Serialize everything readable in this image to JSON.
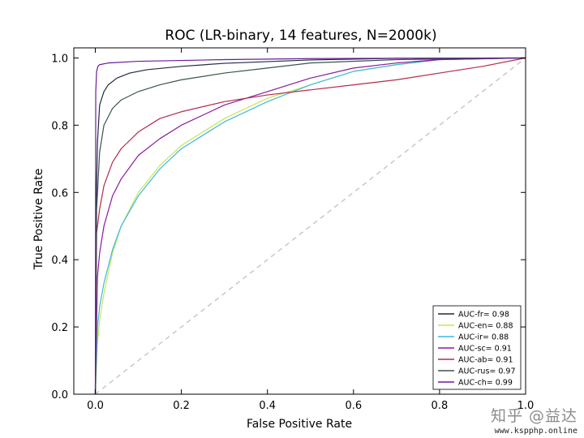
{
  "chart_data": {
    "type": "line",
    "title": "ROC (LR-binary, 14 features, N=2000k)",
    "xlabel": "False Positive Rate",
    "ylabel": "True Positive Rate",
    "xlim": [
      -0.05,
      1.0
    ],
    "ylim": [
      0.0,
      1.03
    ],
    "xticks": [
      "0.0",
      "0.2",
      "0.4",
      "0.6",
      "0.8",
      "1.0"
    ],
    "yticks": [
      "0.0",
      "0.2",
      "0.4",
      "0.6",
      "0.8",
      "1.0"
    ],
    "grid": false,
    "legend_position": "lower-right",
    "diagonal": {
      "color": "#c8c8c8",
      "dashed": true
    },
    "series": [
      {
        "name": "AUC-fr= 0.98",
        "color": "#1f2a44",
        "x": [
          0,
          0.002,
          0.005,
          0.01,
          0.02,
          0.03,
          0.05,
          0.08,
          0.12,
          0.2,
          0.3,
          0.5,
          0.7,
          1.0
        ],
        "y": [
          0,
          0.55,
          0.75,
          0.86,
          0.9,
          0.92,
          0.94,
          0.955,
          0.965,
          0.975,
          0.984,
          0.994,
          0.999,
          1.0
        ]
      },
      {
        "name": "AUC-en= 0.88",
        "color": "#c7e55a",
        "x": [
          0,
          0.005,
          0.01,
          0.02,
          0.04,
          0.06,
          0.1,
          0.15,
          0.2,
          0.3,
          0.4,
          0.5,
          0.6,
          0.7,
          0.8,
          1.0
        ],
        "y": [
          0,
          0.15,
          0.22,
          0.3,
          0.42,
          0.5,
          0.6,
          0.68,
          0.74,
          0.82,
          0.88,
          0.92,
          0.96,
          0.98,
          0.995,
          1.0
        ]
      },
      {
        "name": "AUC-ir= 0.88",
        "color": "#3cb9dd",
        "x": [
          0,
          0.005,
          0.01,
          0.02,
          0.04,
          0.06,
          0.1,
          0.15,
          0.2,
          0.3,
          0.4,
          0.5,
          0.6,
          0.7,
          0.8,
          1.0
        ],
        "y": [
          0,
          0.2,
          0.26,
          0.33,
          0.43,
          0.5,
          0.59,
          0.67,
          0.73,
          0.81,
          0.87,
          0.92,
          0.96,
          0.98,
          0.995,
          1.0
        ]
      },
      {
        "name": "AUC-sc= 0.91",
        "color": "#8b1a9e",
        "x": [
          0,
          0.005,
          0.01,
          0.02,
          0.04,
          0.06,
          0.1,
          0.15,
          0.2,
          0.3,
          0.4,
          0.5,
          0.6,
          0.7,
          0.8,
          1.0
        ],
        "y": [
          0,
          0.35,
          0.42,
          0.5,
          0.59,
          0.64,
          0.71,
          0.76,
          0.8,
          0.86,
          0.9,
          0.94,
          0.97,
          0.985,
          0.995,
          1.0
        ]
      },
      {
        "name": "AUC-ab= 0.91",
        "color": "#b52a4a",
        "x": [
          0,
          0.003,
          0.01,
          0.02,
          0.04,
          0.06,
          0.1,
          0.15,
          0.2,
          0.3,
          0.4,
          0.5,
          0.6,
          0.7,
          0.8,
          0.9,
          1.0
        ],
        "y": [
          0,
          0.48,
          0.55,
          0.62,
          0.69,
          0.73,
          0.78,
          0.82,
          0.84,
          0.87,
          0.89,
          0.905,
          0.92,
          0.935,
          0.955,
          0.975,
          1.0
        ]
      },
      {
        "name": "AUC-rus= 0.97",
        "color": "#3a5548",
        "x": [
          0,
          0.003,
          0.01,
          0.02,
          0.04,
          0.06,
          0.1,
          0.15,
          0.2,
          0.3,
          0.4,
          0.5,
          0.7,
          1.0
        ],
        "y": [
          0,
          0.55,
          0.72,
          0.8,
          0.85,
          0.875,
          0.9,
          0.92,
          0.935,
          0.955,
          0.97,
          0.985,
          0.995,
          1.0
        ]
      },
      {
        "name": "AUC-ch= 0.99",
        "color": "#6a1b9a",
        "x": [
          0,
          0.001,
          0.003,
          0.006,
          0.01,
          0.03,
          0.1,
          0.3,
          0.5,
          0.7,
          1.0
        ],
        "y": [
          0,
          0.9,
          0.96,
          0.975,
          0.98,
          0.985,
          0.99,
          0.995,
          0.998,
          0.999,
          1.0
        ]
      }
    ]
  },
  "watermark": {
    "main": "知乎 @益达",
    "url": "www.kspphp.online"
  }
}
